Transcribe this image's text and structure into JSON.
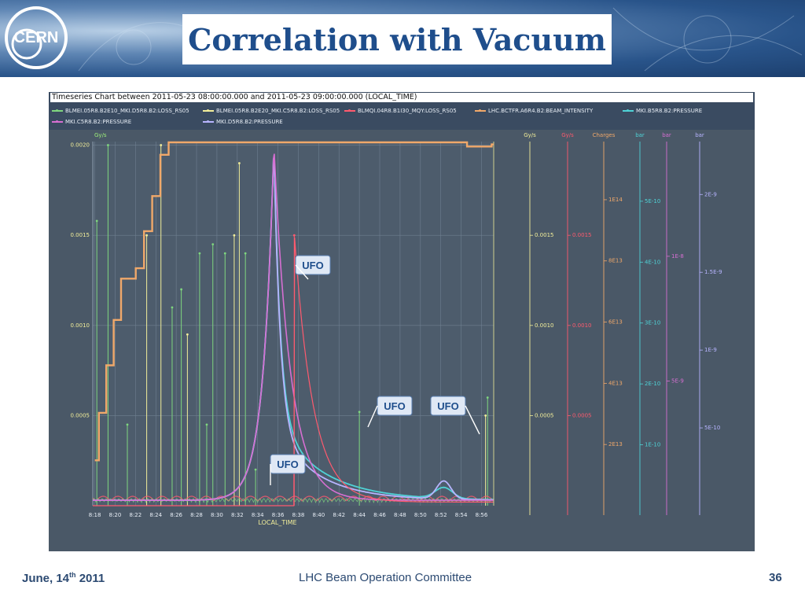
{
  "slide": {
    "title": "Correlation with Vacuum",
    "footer_left_prefix": "June, 14",
    "footer_left_sup": "th",
    "footer_left_suffix": " 2011",
    "footer_center": "LHC Beam Operation Committee",
    "footer_right": "36",
    "logo_text": "CERN",
    "colors": {
      "title": "#1f4e8c",
      "footer": "#2c4a72",
      "banner": "#29548a"
    }
  },
  "chart_data": {
    "type": "line",
    "title": "Timeseries Chart between 2011-05-23 08:00:00.000 and 2011-05-23 09:00:00.000 (LOCAL_TIME)",
    "xlabel": "LOCAL_TIME",
    "x_ticks": [
      "8:18",
      "8:20",
      "8:22",
      "8:24",
      "8:26",
      "8:28",
      "8:30",
      "8:32",
      "8:34",
      "8:36",
      "8:38",
      "8:40",
      "8:42",
      "8:44",
      "8:46",
      "8:48",
      "8:50",
      "8:52",
      "8:54",
      "8:56"
    ],
    "grid": true,
    "legend_position": "top",
    "legend": [
      {
        "name": "BLMEI.05R8.B2E10_MKI.D5R8.B2:LOSS_RS05",
        "color": "#7fd67f"
      },
      {
        "name": "BLMEI.05R8.B2E20_MKI.C5R8.B2:LOSS_RS05",
        "color": "#f2ee9a"
      },
      {
        "name": "BLMQI.04R8.B1I30_MQY:LOSS_RS05",
        "color": "#ff5a6e"
      },
      {
        "name": "LHC.BCTFR.A6R4.B2:BEAM_INTENSITY",
        "color": "#f0a86a"
      },
      {
        "name": "MKI.B5R8.B2:PRESSURE",
        "color": "#4fd2d6"
      },
      {
        "name": "MKI.C5R8.B2:PRESSURE",
        "color": "#d66fd2"
      },
      {
        "name": "MKI.D5R8.B2:PRESSURE",
        "color": "#b7b4ff"
      }
    ],
    "axes": [
      {
        "id": "left",
        "unit": "Gy/s",
        "color": "#9ef07a",
        "ticks": [
          "0.0020",
          "0.0015",
          "0.0010",
          "0.0005"
        ],
        "values": [
          0.002,
          0.0015,
          0.001,
          0.0005
        ],
        "ylim": [
          0,
          0.00202
        ]
      },
      {
        "id": "right1",
        "unit": "Gy/s",
        "color": "#f2ee9a",
        "ticks": [
          "0.0015",
          "0.0010",
          "0.0005"
        ],
        "values": [
          0.0015,
          0.001,
          0.0005
        ],
        "ylim": [
          0,
          0.00202
        ]
      },
      {
        "id": "right2",
        "unit": "Gy/s",
        "color": "#ff5a6e",
        "ticks": [
          "0.0015",
          "0.0010",
          "0.0005"
        ],
        "values": [
          0.0015,
          0.001,
          0.0005
        ],
        "ylim": [
          0,
          0.00202
        ]
      },
      {
        "id": "charges",
        "unit": "Charges",
        "color": "#f0a86a",
        "ticks": [
          "1E14",
          "8E13",
          "6E13",
          "4E13",
          "2E13"
        ],
        "values": [
          100000000000000.0,
          80000000000000.0,
          60000000000000.0,
          40000000000000.0,
          20000000000000.0
        ],
        "ylim": [
          0,
          119000000000000.0
        ]
      },
      {
        "id": "bar1",
        "unit": "bar",
        "color": "#4fd2d6",
        "ticks": [
          "5E-10",
          "4E-10",
          "3E-10",
          "2E-10",
          "1E-10"
        ],
        "values": [
          5e-10,
          4e-10,
          3e-10,
          2e-10,
          1e-10
        ],
        "ylim": [
          0,
          5.98e-10
        ]
      },
      {
        "id": "bar2",
        "unit": "bar",
        "color": "#d66fd2",
        "ticks": [
          "1E-8",
          "5E-9"
        ],
        "values": [
          1e-08,
          5e-09
        ],
        "ylim": [
          0,
          1.46e-08
        ]
      },
      {
        "id": "bar3",
        "unit": "bar",
        "color": "#b7b4ff",
        "ticks": [
          "2E-9",
          "1.5E-9",
          "1E-9",
          "5E-10"
        ],
        "values": [
          2e-09,
          1.5e-09,
          1e-09,
          5e-10
        ],
        "ylim": [
          0,
          2.34e-09
        ]
      }
    ],
    "beam_intensity_steps": [
      [
        8.3,
        22000000000000.0
      ],
      [
        8.55,
        45000000000000.0
      ],
      [
        8.9,
        45000000000000.0
      ],
      [
        9.0,
        68000000000000.0
      ],
      [
        9.45,
        90000000000000.0
      ],
      [
        9.9,
        110000000000000.0
      ],
      [
        10.8,
        115000000000000.0
      ],
      [
        11.3,
        133000000000000.0
      ],
      [
        11.8,
        150000000000000.0
      ],
      [
        12.3,
        170000000000000.0
      ],
      [
        12.8,
        176000000000000.0
      ],
      [
        29.8,
        176000000000000.0
      ],
      [
        31.0,
        174000000000000.0
      ],
      [
        32.5,
        175000000000000.0
      ]
    ],
    "pressure_series": {
      "peak_time": "8:35.6",
      "peak_value_left_scale": 0.002
    },
    "annotations": [
      {
        "text": "UFO",
        "target": "8:35"
      },
      {
        "text": "UFO",
        "target": "8:43"
      },
      {
        "text": "UFO",
        "target": "8:56"
      },
      {
        "text": "UFO",
        "target": "8:33"
      }
    ]
  }
}
